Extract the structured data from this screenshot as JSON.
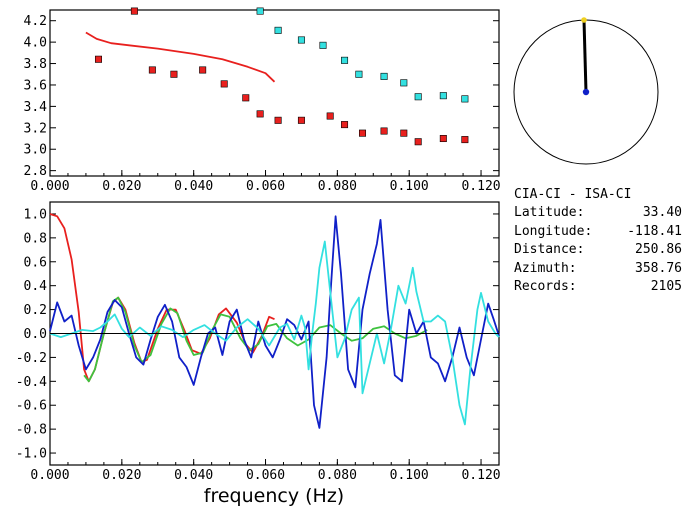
{
  "station": {
    "title": "CIA-CI - ISA-CI",
    "rows": [
      {
        "label": "Latitude:",
        "value": "33.40"
      },
      {
        "label": "Longitude:",
        "value": "-118.41"
      },
      {
        "label": "Distance:",
        "value": "250.86"
      },
      {
        "label": "Azimuth:",
        "value": "358.76"
      },
      {
        "label": "Records:",
        "value": "2105"
      }
    ]
  },
  "colors": {
    "red": "#e8201e",
    "cyan": "#33e0e0",
    "blue": "#1020c8",
    "green": "#3ec23e",
    "black": "#000000",
    "yellow": "#f0d020"
  },
  "chart_data": [
    {
      "type": "scatter",
      "xlim": [
        0.0,
        0.125
      ],
      "ylim": [
        2.75,
        4.3
      ],
      "x_ticks": [
        "0.000",
        "0.020",
        "0.040",
        "0.060",
        "0.080",
        "0.100",
        "0.120"
      ],
      "y_ticks": [
        "2.8",
        "3.0",
        "3.2",
        "3.4",
        "3.6",
        "3.8",
        "4.0",
        "4.2"
      ],
      "series": [
        {
          "kind": "points",
          "color": "red",
          "points": [
            [
              0.0135,
              3.84
            ],
            [
              0.0235,
              4.29
            ],
            [
              0.0285,
              3.74
            ],
            [
              0.0345,
              3.7
            ],
            [
              0.0425,
              3.74
            ],
            [
              0.0485,
              3.61
            ],
            [
              0.0545,
              3.48
            ],
            [
              0.0585,
              3.33
            ],
            [
              0.0635,
              3.27
            ],
            [
              0.07,
              3.27
            ],
            [
              0.078,
              3.31
            ],
            [
              0.082,
              3.23
            ],
            [
              0.087,
              3.15
            ],
            [
              0.093,
              3.17
            ],
            [
              0.0985,
              3.15
            ],
            [
              0.1025,
              3.07
            ],
            [
              0.1095,
              3.1
            ],
            [
              0.1155,
              3.09
            ]
          ]
        },
        {
          "kind": "points",
          "color": "cyan",
          "points": [
            [
              0.0585,
              4.29
            ],
            [
              0.0635,
              4.11
            ],
            [
              0.07,
              4.02
            ],
            [
              0.076,
              3.97
            ],
            [
              0.082,
              3.83
            ],
            [
              0.086,
              3.7
            ],
            [
              0.093,
              3.68
            ],
            [
              0.0985,
              3.62
            ],
            [
              0.1025,
              3.49
            ],
            [
              0.1095,
              3.5
            ],
            [
              0.1155,
              3.47
            ]
          ]
        },
        {
          "kind": "line",
          "color": "red",
          "points": [
            [
              0.01,
              4.09
            ],
            [
              0.013,
              4.03
            ],
            [
              0.017,
              3.99
            ],
            [
              0.022,
              3.97
            ],
            [
              0.03,
              3.94
            ],
            [
              0.04,
              3.89
            ],
            [
              0.048,
              3.84
            ],
            [
              0.055,
              3.77
            ],
            [
              0.06,
              3.71
            ],
            [
              0.0625,
              3.63
            ]
          ]
        }
      ]
    },
    {
      "type": "line",
      "xlabel": "frequency (Hz)",
      "xlim": [
        0.0,
        0.125
      ],
      "ylim": [
        -1.1,
        1.1
      ],
      "x_ticks": [
        "0.000",
        "0.020",
        "0.040",
        "0.060",
        "0.080",
        "0.100",
        "0.120"
      ],
      "y_ticks": [
        "1.0",
        "0.8",
        "0.6",
        "0.4",
        "0.2",
        "0.0",
        "-0.2",
        "-0.4",
        "-0.6",
        "-0.8",
        "-1.0"
      ],
      "series": [
        {
          "color": "red",
          "points": [
            [
              0,
              1.0
            ],
            [
              0.002,
              0.98
            ],
            [
              0.004,
              0.88
            ],
            [
              0.006,
              0.62
            ],
            [
              0.008,
              0.18
            ],
            [
              0.0095,
              -0.3
            ],
            [
              0.0108,
              -0.4
            ],
            [
              0.0125,
              -0.3
            ],
            [
              0.015,
              0.0
            ],
            [
              0.0175,
              0.26
            ],
            [
              0.019,
              0.3
            ],
            [
              0.021,
              0.2
            ],
            [
              0.0235,
              -0.08
            ],
            [
              0.0255,
              -0.24
            ],
            [
              0.027,
              -0.22
            ],
            [
              0.03,
              0.04
            ],
            [
              0.0325,
              0.2
            ],
            [
              0.035,
              0.2
            ],
            [
              0.0375,
              0.02
            ],
            [
              0.0395,
              -0.14
            ],
            [
              0.042,
              -0.17
            ],
            [
              0.0445,
              -0.04
            ],
            [
              0.047,
              0.16
            ],
            [
              0.049,
              0.21
            ],
            [
              0.052,
              0.09
            ],
            [
              0.0545,
              -0.09
            ],
            [
              0.0565,
              -0.16
            ],
            [
              0.059,
              -0.02
            ],
            [
              0.061,
              0.14
            ],
            [
              0.0625,
              0.12
            ]
          ]
        },
        {
          "color": "green",
          "points": [
            [
              0.0095,
              -0.35
            ],
            [
              0.0108,
              -0.4
            ],
            [
              0.0125,
              -0.3
            ],
            [
              0.015,
              0.0
            ],
            [
              0.0175,
              0.27
            ],
            [
              0.019,
              0.3
            ],
            [
              0.021,
              0.18
            ],
            [
              0.0235,
              -0.1
            ],
            [
              0.0255,
              -0.24
            ],
            [
              0.028,
              -0.18
            ],
            [
              0.031,
              0.08
            ],
            [
              0.0335,
              0.21
            ],
            [
              0.0355,
              0.17
            ],
            [
              0.038,
              -0.06
            ],
            [
              0.04,
              -0.18
            ],
            [
              0.0425,
              -0.16
            ],
            [
              0.045,
              0.02
            ],
            [
              0.0475,
              0.16
            ],
            [
              0.05,
              0.14
            ],
            [
              0.053,
              -0.04
            ],
            [
              0.0555,
              -0.14
            ],
            [
              0.058,
              -0.09
            ],
            [
              0.0605,
              0.06
            ],
            [
              0.063,
              0.08
            ],
            [
              0.066,
              -0.04
            ],
            [
              0.069,
              -0.1
            ],
            [
              0.072,
              -0.05
            ],
            [
              0.075,
              0.05
            ],
            [
              0.078,
              0.07
            ],
            [
              0.081,
              0.0
            ],
            [
              0.084,
              -0.06
            ],
            [
              0.087,
              -0.04
            ],
            [
              0.09,
              0.04
            ],
            [
              0.093,
              0.06
            ],
            [
              0.096,
              0.0
            ],
            [
              0.099,
              -0.04
            ],
            [
              0.102,
              -0.02
            ],
            [
              0.105,
              0.03
            ]
          ]
        },
        {
          "color": "blue",
          "points": [
            [
              0,
              0.02
            ],
            [
              0.002,
              0.26
            ],
            [
              0.004,
              0.1
            ],
            [
              0.006,
              0.15
            ],
            [
              0.008,
              -0.1
            ],
            [
              0.01,
              -0.3
            ],
            [
              0.012,
              -0.2
            ],
            [
              0.014,
              -0.05
            ],
            [
              0.016,
              0.18
            ],
            [
              0.018,
              0.28
            ],
            [
              0.02,
              0.22
            ],
            [
              0.022,
              0.0
            ],
            [
              0.024,
              -0.2
            ],
            [
              0.026,
              -0.26
            ],
            [
              0.028,
              -0.05
            ],
            [
              0.03,
              0.14
            ],
            [
              0.032,
              0.24
            ],
            [
              0.034,
              0.1
            ],
            [
              0.036,
              -0.2
            ],
            [
              0.038,
              -0.28
            ],
            [
              0.04,
              -0.43
            ],
            [
              0.042,
              -0.2
            ],
            [
              0.044,
              0.0
            ],
            [
              0.046,
              0.05
            ],
            [
              0.048,
              -0.18
            ],
            [
              0.05,
              0.1
            ],
            [
              0.052,
              0.2
            ],
            [
              0.054,
              -0.05
            ],
            [
              0.056,
              -0.2
            ],
            [
              0.058,
              0.1
            ],
            [
              0.06,
              -0.1
            ],
            [
              0.062,
              -0.2
            ],
            [
              0.064,
              -0.05
            ],
            [
              0.066,
              0.12
            ],
            [
              0.068,
              0.07
            ],
            [
              0.07,
              -0.05
            ],
            [
              0.072,
              0.1
            ],
            [
              0.0735,
              -0.6
            ],
            [
              0.075,
              -0.79
            ],
            [
              0.077,
              -0.2
            ],
            [
              0.078,
              0.3
            ],
            [
              0.0795,
              0.98
            ],
            [
              0.081,
              0.5
            ],
            [
              0.083,
              -0.3
            ],
            [
              0.085,
              -0.45
            ],
            [
              0.087,
              0.2
            ],
            [
              0.089,
              0.5
            ],
            [
              0.091,
              0.75
            ],
            [
              0.092,
              0.95
            ],
            [
              0.094,
              0.2
            ],
            [
              0.096,
              -0.35
            ],
            [
              0.098,
              -0.4
            ],
            [
              0.1,
              0.2
            ],
            [
              0.102,
              0.0
            ],
            [
              0.104,
              0.1
            ],
            [
              0.106,
              -0.2
            ],
            [
              0.108,
              -0.25
            ],
            [
              0.11,
              -0.4
            ],
            [
              0.112,
              -0.2
            ],
            [
              0.114,
              0.05
            ],
            [
              0.116,
              -0.2
            ],
            [
              0.118,
              -0.35
            ],
            [
              0.12,
              -0.05
            ],
            [
              0.122,
              0.25
            ],
            [
              0.1235,
              0.12
            ],
            [
              0.125,
              -0.02
            ]
          ]
        },
        {
          "color": "cyan",
          "points": [
            [
              0,
              0.0
            ],
            [
              0.003,
              -0.03
            ],
            [
              0.006,
              0.0
            ],
            [
              0.009,
              0.03
            ],
            [
              0.012,
              0.02
            ],
            [
              0.014,
              0.05
            ],
            [
              0.016,
              0.1
            ],
            [
              0.018,
              0.16
            ],
            [
              0.02,
              0.04
            ],
            [
              0.022,
              -0.03
            ],
            [
              0.025,
              0.05
            ],
            [
              0.028,
              -0.02
            ],
            [
              0.031,
              0.06
            ],
            [
              0.034,
              0.03
            ],
            [
              0.037,
              -0.03
            ],
            [
              0.04,
              0.03
            ],
            [
              0.043,
              0.07
            ],
            [
              0.046,
              0.0
            ],
            [
              0.049,
              -0.06
            ],
            [
              0.052,
              0.05
            ],
            [
              0.055,
              0.12
            ],
            [
              0.058,
              0.04
            ],
            [
              0.061,
              -0.1
            ],
            [
              0.064,
              0.05
            ],
            [
              0.066,
              0.08
            ],
            [
              0.068,
              -0.05
            ],
            [
              0.07,
              0.15
            ],
            [
              0.071,
              0.05
            ],
            [
              0.072,
              -0.3
            ],
            [
              0.073,
              0.0
            ],
            [
              0.074,
              0.25
            ],
            [
              0.075,
              0.55
            ],
            [
              0.0765,
              0.77
            ],
            [
              0.078,
              0.35
            ],
            [
              0.08,
              -0.2
            ],
            [
              0.082,
              -0.05
            ],
            [
              0.084,
              0.2
            ],
            [
              0.086,
              0.3
            ],
            [
              0.087,
              -0.5
            ],
            [
              0.089,
              -0.25
            ],
            [
              0.091,
              0.0
            ],
            [
              0.093,
              -0.25
            ],
            [
              0.095,
              0.05
            ],
            [
              0.097,
              0.4
            ],
            [
              0.099,
              0.25
            ],
            [
              0.101,
              0.55
            ],
            [
              0.102,
              0.35
            ],
            [
              0.104,
              0.1
            ],
            [
              0.106,
              0.1
            ],
            [
              0.108,
              0.15
            ],
            [
              0.11,
              0.1
            ],
            [
              0.112,
              -0.2
            ],
            [
              0.114,
              -0.6
            ],
            [
              0.1155,
              -0.76
            ],
            [
              0.117,
              -0.3
            ],
            [
              0.119,
              0.2
            ],
            [
              0.12,
              0.34
            ],
            [
              0.122,
              0.1
            ],
            [
              0.124,
              0.0
            ],
            [
              0.125,
              -0.03
            ]
          ]
        },
        {
          "color": "black",
          "points": [
            [
              0,
              0.0
            ],
            [
              0.125,
              0.0
            ]
          ]
        }
      ]
    }
  ]
}
